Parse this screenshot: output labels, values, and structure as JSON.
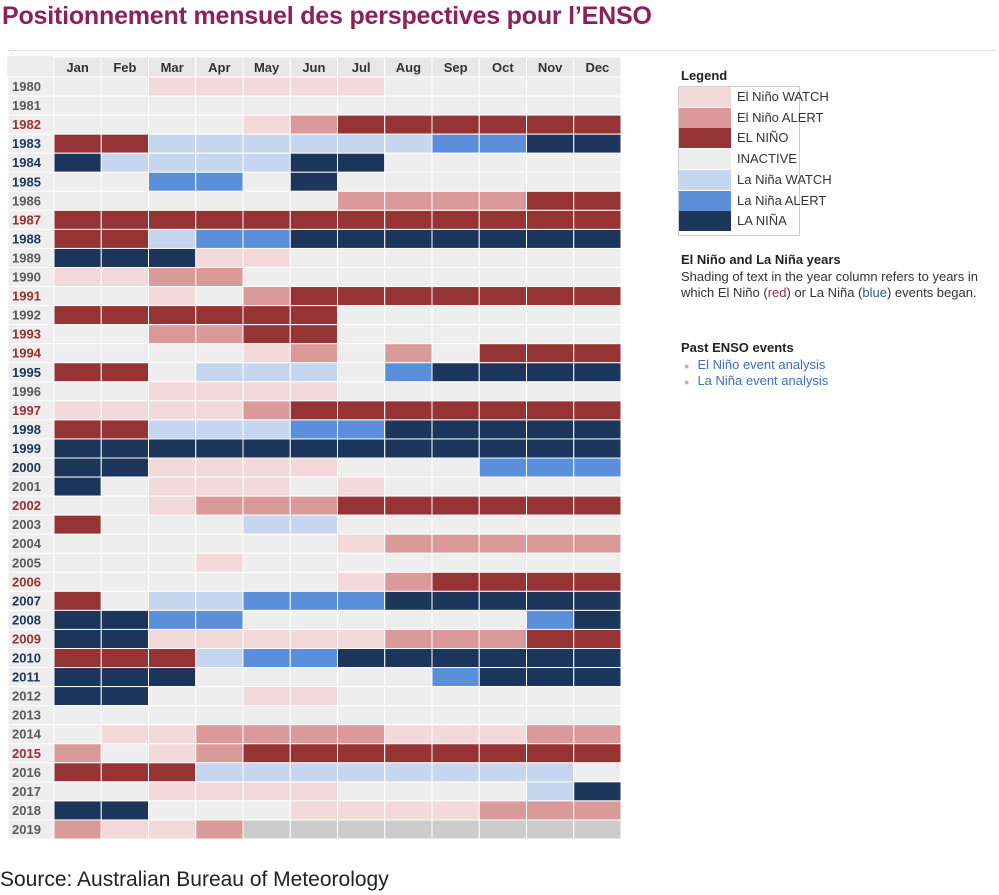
{
  "title": "Positionnement mensuel des perspectives pour l’ENSO",
  "source": "Source: Australian Bureau of Meteorology",
  "legend": {
    "title": "Legend",
    "items": [
      {
        "key": "W",
        "label": "El Niño WATCH",
        "color": "#f3d9da"
      },
      {
        "key": "A",
        "label": "El Niño ALERT",
        "color": "#d99a99"
      },
      {
        "key": "N",
        "label": "EL NIÑO",
        "color": "#963334"
      },
      {
        "key": "I",
        "label": "INACTIVE",
        "color": "#eeeeee"
      },
      {
        "key": "w",
        "label": "La Niña WATCH",
        "color": "#c5d6ee"
      },
      {
        "key": "a",
        "label": "La Niña ALERT",
        "color": "#5b8fd9"
      },
      {
        "key": "L",
        "label": "LA NIÑA",
        "color": "#1b355b"
      }
    ]
  },
  "years_note": {
    "heading": "El Niño and La Niña years",
    "text_before": "Shading of text in the year column refers to years in which El Niño (",
    "red_word": "red",
    "text_middle": ") or La Niña (",
    "blue_word": "blue",
    "text_after": ") events began."
  },
  "past_events": {
    "heading": "Past ENSO events",
    "links": [
      "El Niño event analysis",
      "La Niña event analysis"
    ]
  },
  "chart_data": {
    "type": "heatmap",
    "title": "Positionnement mensuel des perspectives pour l’ENSO",
    "months": [
      "Jan",
      "Feb",
      "Mar",
      "Apr",
      "May",
      "Jun",
      "Jul",
      "Aug",
      "Sep",
      "Oct",
      "Nov",
      "Dec"
    ],
    "year_label_colors": {
      "elnino": "#9b2f2f",
      "lanina": "#1b355b",
      "neutral": "#5a5a5a"
    },
    "cell_grid_color": "#ffffff",
    "no_data_color": "#cccccc",
    "legend_key": "W=El Niño WATCH, A=El Niño ALERT, N=EL NIÑO, I=INACTIVE, w=La Niña WATCH, a=La Niña ALERT, L=LA NIÑA, X=no data",
    "rows": [
      {
        "year": "1980",
        "type": "neutral",
        "states": "IIWWWWWIIIII"
      },
      {
        "year": "1981",
        "type": "neutral",
        "states": "IIIIIIIIIIII"
      },
      {
        "year": "1982",
        "type": "elnino",
        "states": "IIIIWANNNNNN"
      },
      {
        "year": "1983",
        "type": "lanina",
        "states": "NNwwwwwwaaLL"
      },
      {
        "year": "1984",
        "type": "lanina",
        "states": "LwwwwLLIIIII"
      },
      {
        "year": "1985",
        "type": "lanina",
        "states": "IIaaILIIIIII"
      },
      {
        "year": "1986",
        "type": "neutral",
        "states": "IIIIIIAAAANN"
      },
      {
        "year": "1987",
        "type": "elnino",
        "states": "NNNNNNNNNNNN"
      },
      {
        "year": "1988",
        "type": "lanina",
        "states": "NNwaaLLLLLLL"
      },
      {
        "year": "1989",
        "type": "neutral",
        "states": "LLLWWIIIIIII"
      },
      {
        "year": "1990",
        "type": "neutral",
        "states": "WWAAIIIIIIII"
      },
      {
        "year": "1991",
        "type": "elnino",
        "states": "IIWIANNNNNNN"
      },
      {
        "year": "1992",
        "type": "neutral",
        "states": "NNNNNNIIIIII"
      },
      {
        "year": "1993",
        "type": "elnino",
        "states": "IIAANNIIIIII"
      },
      {
        "year": "1994",
        "type": "elnino",
        "states": "IIIIWAIAINNN"
      },
      {
        "year": "1995",
        "type": "lanina",
        "states": "NNIwwwIaLLLL"
      },
      {
        "year": "1996",
        "type": "neutral",
        "states": "IIWWWWIIIIII"
      },
      {
        "year": "1997",
        "type": "elnino",
        "states": "WWWWANNNNNNN"
      },
      {
        "year": "1998",
        "type": "lanina",
        "states": "NNwwwaaLLLLL"
      },
      {
        "year": "1999",
        "type": "lanina",
        "states": "LLLLLLLLLLLL"
      },
      {
        "year": "2000",
        "type": "lanina",
        "states": "LLWWWWIIIaaa"
      },
      {
        "year": "2001",
        "type": "neutral",
        "states": "LIWWWIWIIIII"
      },
      {
        "year": "2002",
        "type": "elnino",
        "states": "IIWAAANNNNNN"
      },
      {
        "year": "2003",
        "type": "neutral",
        "states": "NIIIwwIIIIII"
      },
      {
        "year": "2004",
        "type": "neutral",
        "states": "IIIIIIWAAAAA"
      },
      {
        "year": "2005",
        "type": "neutral",
        "states": "IIIWIIIIIIII"
      },
      {
        "year": "2006",
        "type": "elnino",
        "states": "IIIIIIWANNNN"
      },
      {
        "year": "2007",
        "type": "lanina",
        "states": "NIwwaaaLLLLL"
      },
      {
        "year": "2008",
        "type": "lanina",
        "states": "LLaaIIIIIIaL"
      },
      {
        "year": "2009",
        "type": "elnino",
        "states": "LLWWWWWAAANN"
      },
      {
        "year": "2010",
        "type": "lanina",
        "states": "NNNwaaLLLLLL"
      },
      {
        "year": "2011",
        "type": "lanina",
        "states": "LLLIIIIIaLLL"
      },
      {
        "year": "2012",
        "type": "neutral",
        "states": "LLIIWWIIIIII"
      },
      {
        "year": "2013",
        "type": "neutral",
        "states": "IIIIIIIIIIII"
      },
      {
        "year": "2014",
        "type": "neutral",
        "states": "IWWAAAAWWWAA"
      },
      {
        "year": "2015",
        "type": "elnino",
        "states": "AIWANNNNNNNN"
      },
      {
        "year": "2016",
        "type": "neutral",
        "states": "NNNwwwwwwwwI"
      },
      {
        "year": "2017",
        "type": "neutral",
        "states": "IIWWWWIIIIwL"
      },
      {
        "year": "2018",
        "type": "neutral",
        "states": "LLIIIWWWWAAA"
      },
      {
        "year": "2019",
        "type": "neutral",
        "states": "AWWAXXXXXXXX"
      }
    ]
  }
}
